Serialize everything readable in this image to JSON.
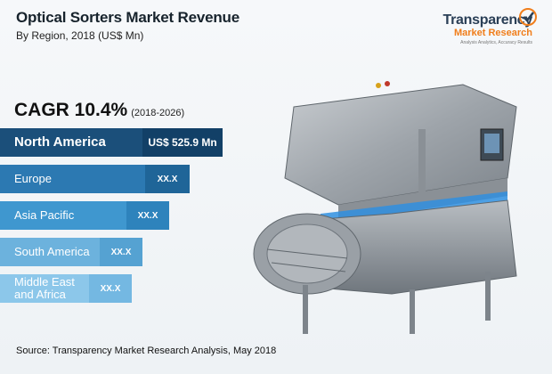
{
  "header": {
    "title": "Optical Sorters Market Revenue",
    "subtitle": "By Region, 2018 (US$ Mn)"
  },
  "logo": {
    "line1": "Transparency",
    "line2": "Market Research",
    "tagline": "Analysis Analytics, Accuracy Results"
  },
  "cagr": {
    "label": "CAGR 10.4%",
    "period": "(2018-2026)"
  },
  "chart_data": {
    "type": "bar",
    "title": "Optical Sorters Market Revenue",
    "subtitle": "By Region, 2018 (US$ Mn)",
    "categories": [
      "North America",
      "Europe",
      "Asia Pacific",
      "South America",
      "Middle East and Africa"
    ],
    "value_labels": [
      "US$ 525.9 Mn",
      "XX.X",
      "XX.X",
      "XX.X",
      "XX.X"
    ],
    "values": [
      525.9,
      null,
      null,
      null,
      null
    ],
    "bar_lengths_relative": [
      1.0,
      0.85,
      0.76,
      0.64,
      0.59
    ],
    "colors": [
      "#1b4f7a",
      "#2c79b2",
      "#3f97cf",
      "#6cb2dd",
      "#8cc7ea"
    ],
    "value_box_colors": [
      "#124067",
      "#1f6598",
      "#2e83bc",
      "#55a2d2",
      "#74b8e2"
    ]
  },
  "machine_image": {
    "icon": "optical-sorter-machine-image"
  },
  "footer": {
    "source": "Source: Transparency Market Research Analysis, May 2018"
  }
}
